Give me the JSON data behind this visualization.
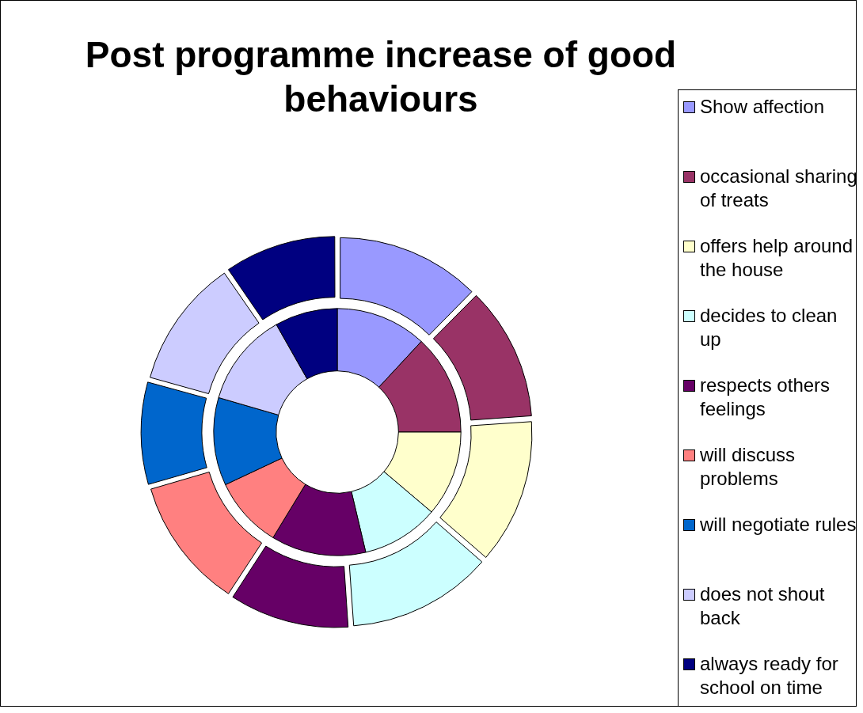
{
  "chart_data": {
    "type": "donut",
    "title": "Post programme increase of good behaviours",
    "categories": [
      "Show affection",
      "occasional sharing of treats",
      "offers help around the house",
      "decides to clean up",
      "respects others feelings",
      "will discuss problems",
      "will negotiate rules",
      "does not shout back",
      "always ready for school on time"
    ],
    "colors": [
      "#9999ff",
      "#993366",
      "#ffffcc",
      "#ccffff",
      "#660066",
      "#ff8080",
      "#0066cc",
      "#ccccff",
      "#000080"
    ],
    "series": [
      {
        "values": [
          12.4,
          11.5,
          12.5,
          12.5,
          10.3,
          11.3,
          8.8,
          11.1,
          9.6
        ]
      },
      {
        "values": [
          11.9,
          13.1,
          11.2,
          10.1,
          12.4,
          9.3,
          11.5,
          12.3,
          8.2
        ]
      }
    ],
    "legend": "right"
  }
}
